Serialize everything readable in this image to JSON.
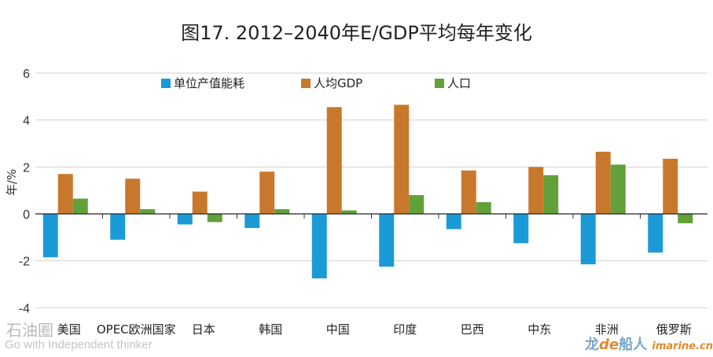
{
  "chart_data": {
    "type": "bar",
    "title": "图17. 2012–2040年E/GDP平均每年变化",
    "ylabel": "年/%",
    "xlabel": "",
    "ylim": [
      -4,
      6
    ],
    "yticks": [
      -4,
      -2,
      0,
      2,
      4,
      6
    ],
    "grid": true,
    "legend_position": "top",
    "categories": [
      "美国",
      "OPEC欧洲国家",
      "日本",
      "韩国",
      "中国",
      "印度",
      "巴西",
      "中东",
      "非洲",
      "俄罗斯"
    ],
    "series": [
      {
        "name": "单位产值能耗",
        "color": "#1a9bd7",
        "values": [
          -1.85,
          -1.1,
          -0.45,
          -0.6,
          -2.75,
          -2.25,
          -0.65,
          -1.25,
          -2.15,
          -1.65
        ]
      },
      {
        "name": "人均GDP",
        "color": "#c8782d",
        "values": [
          1.7,
          1.5,
          0.95,
          1.8,
          4.55,
          4.65,
          1.85,
          2.0,
          2.65,
          2.35
        ]
      },
      {
        "name": "人口",
        "color": "#62a03a",
        "values": [
          0.65,
          0.2,
          -0.35,
          0.2,
          0.15,
          0.8,
          0.5,
          1.65,
          2.1,
          -0.4
        ]
      }
    ]
  },
  "watermarks": {
    "left_line1": "石油圈",
    "left_line2": "Go with Independent thinker",
    "right_brand_a": "龙",
    "right_brand_b": "de",
    "right_brand_c": "船人",
    "right_url": "imarine.cn"
  }
}
